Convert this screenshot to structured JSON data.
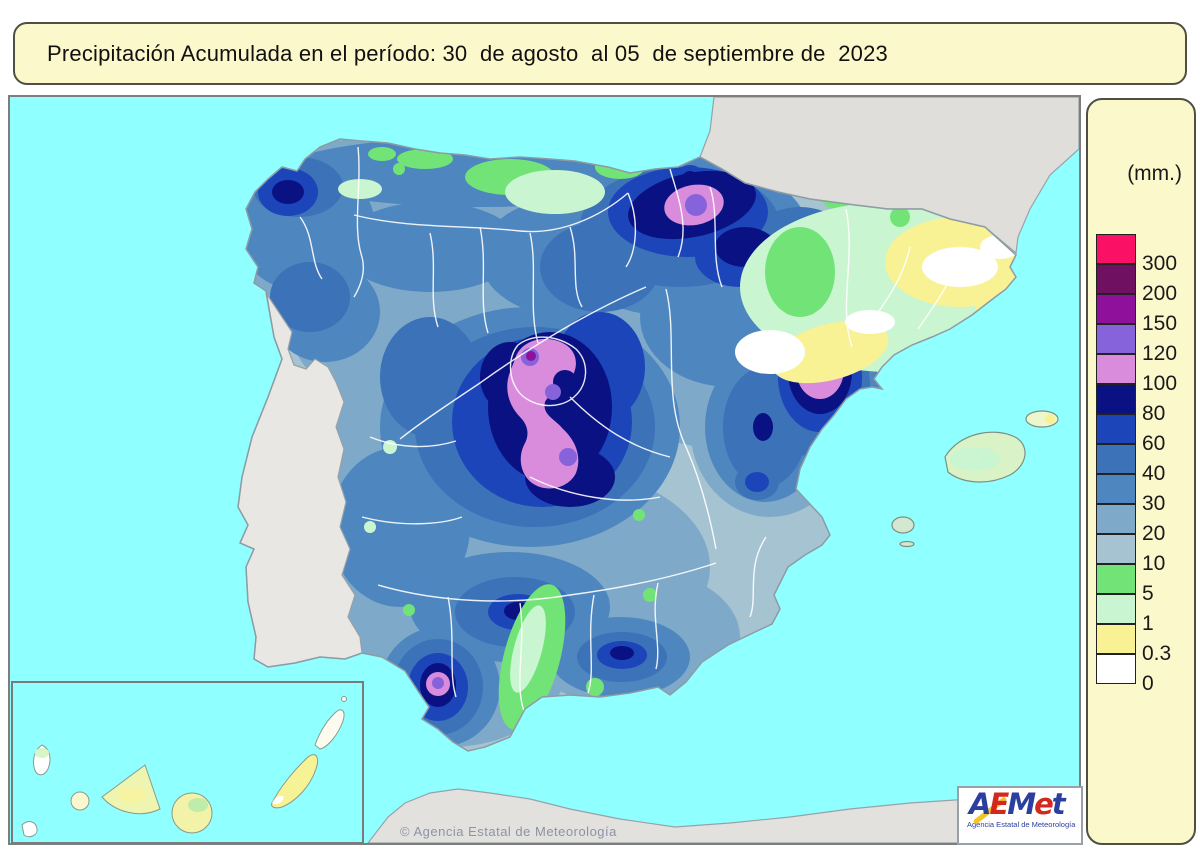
{
  "title_bar": {
    "text": "Precipitación Acumulada en el período: 30  de agosto  al 05  de septiembre de  2023",
    "bg_color": "#FBF8CB",
    "border_color": "#4F4F42"
  },
  "map": {
    "sea_color": "#90FFFF",
    "no_data_land_color": "#E3E1DE",
    "portugal_color": "#E9E7E4",
    "boundary_line_color": "#FFFFFF",
    "copyright": "© Agencia Estatal de Meteorología"
  },
  "legend": {
    "unit_label": "(mm.)",
    "bg_color": "#FBF8CB",
    "entries": [
      {
        "value": "300",
        "color": "#FA1166"
      },
      {
        "value": "200",
        "color": "#701060"
      },
      {
        "value": "150",
        "color": "#8F109A"
      },
      {
        "value": "120",
        "color": "#8663DA"
      },
      {
        "value": "100",
        "color": "#D98BDC"
      },
      {
        "value": "80",
        "color": "#0A1182"
      },
      {
        "value": "60",
        "color": "#1C45BA"
      },
      {
        "value": "40",
        "color": "#3B72B8"
      },
      {
        "value": "30",
        "color": "#4E86C0"
      },
      {
        "value": "20",
        "color": "#7FA9C9"
      },
      {
        "value": "10",
        "color": "#A5C3D1"
      },
      {
        "value": "5",
        "color": "#72E377"
      },
      {
        "value": "1",
        "color": "#C9F6D0"
      },
      {
        "value": "0.3",
        "color": "#F8F295"
      },
      {
        "value": "0",
        "color": "#FFFFFF"
      }
    ]
  },
  "logo": {
    "letters": [
      {
        "ch": "A",
        "color": "#2B3F9E"
      },
      {
        "ch": "E",
        "color": "#D3281E"
      },
      {
        "ch": "M",
        "color": "#2B3F9E"
      },
      {
        "ch": "e",
        "color": "#D3281E"
      },
      {
        "ch": "t",
        "color": "#2B3F9E"
      }
    ],
    "accent_color": "#F2C428",
    "subtitle": "Agencia Estatal de Meteorología"
  }
}
